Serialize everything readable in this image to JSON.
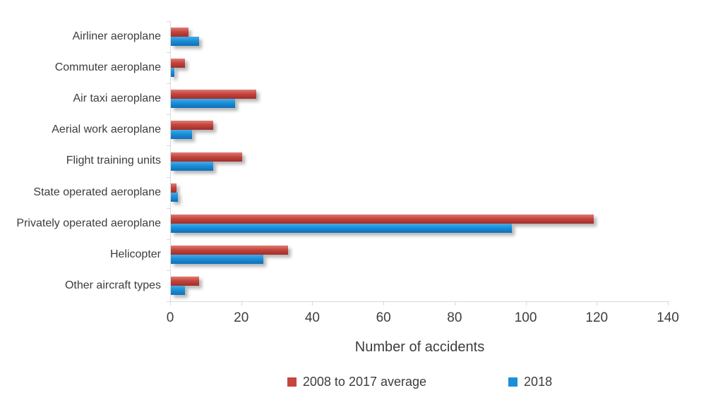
{
  "chart_data": {
    "type": "bar",
    "orientation": "horizontal",
    "title": "",
    "xlabel": "Number of accidents",
    "xlim": [
      0,
      140
    ],
    "x_ticks": [
      0,
      20,
      40,
      60,
      80,
      100,
      120,
      140
    ],
    "grid": false,
    "legend_position": "bottom",
    "categories": [
      "Airliner aeroplane",
      "Commuter aeroplane",
      "Air taxi aeroplane",
      "Aerial work aeroplane",
      "Flight training units",
      "State operated aeroplane",
      "Privately operated aeroplane",
      "Helicopter",
      "Other aircraft types"
    ],
    "series": [
      {
        "name": "2008 to 2017 average",
        "values": [
          5,
          4,
          24,
          12,
          20,
          1.5,
          119,
          33,
          8
        ],
        "color": "#c6463e",
        "color_light": "#dc7f77",
        "color_dark": "#9e2f28"
      },
      {
        "name": "2018",
        "values": [
          8,
          1,
          18,
          6,
          12,
          2,
          96,
          26,
          4
        ],
        "color": "#1b8fd8",
        "color_light": "#47abe6",
        "color_dark": "#0d6fb8"
      }
    ],
    "colors": {
      "axis_line": "#d9d9d9",
      "text": "#3d3d3d",
      "background": "#ffffff"
    }
  }
}
